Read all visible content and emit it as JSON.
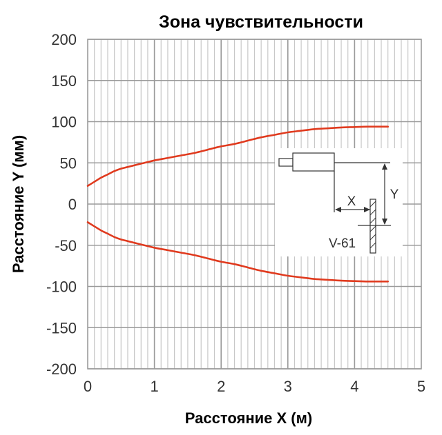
{
  "chart_data": {
    "type": "line",
    "title": "Зона чувствительности",
    "xlabel": "Расстояние X (м)",
    "ylabel": "Расстояние Y (мм)",
    "xlim": [
      0,
      5
    ],
    "ylim": [
      -200,
      200
    ],
    "x_ticks": [
      "0",
      "1",
      "2",
      "3",
      "4",
      "5"
    ],
    "y_ticks": [
      "200",
      "150",
      "100",
      "50",
      "0",
      "-50",
      "-100",
      "-150",
      "-200"
    ],
    "grid": true,
    "line_color": "#e03a1e",
    "series": [
      {
        "x": [
          0.0,
          0.1,
          0.2,
          0.3,
          0.4,
          0.5,
          0.6,
          0.8,
          1.0,
          1.2,
          1.4,
          1.6,
          1.8,
          2.0,
          2.2,
          2.4,
          2.6,
          2.8,
          3.0,
          3.2,
          3.4,
          3.6,
          3.8,
          4.0,
          4.2,
          4.5
        ],
        "y": [
          22,
          27,
          32,
          36,
          40,
          43,
          45,
          49,
          53,
          56,
          59,
          62,
          66,
          70,
          73,
          77,
          81,
          84,
          87,
          89,
          91,
          92,
          93,
          93.5,
          94,
          94
        ]
      },
      {
        "x": [
          0.0,
          0.1,
          0.2,
          0.3,
          0.4,
          0.5,
          0.6,
          0.8,
          1.0,
          1.2,
          1.4,
          1.6,
          1.8,
          2.0,
          2.2,
          2.4,
          2.6,
          2.8,
          3.0,
          3.2,
          3.4,
          3.6,
          3.8,
          4.0,
          4.2,
          4.5
        ],
        "y": [
          -22,
          -27,
          -32,
          -36,
          -40,
          -43,
          -45,
          -49,
          -53,
          -56,
          -59,
          -62,
          -66,
          -70,
          -73,
          -77,
          -81,
          -84,
          -87,
          -89,
          -91,
          -92,
          -93,
          -93.5,
          -94,
          -94
        ]
      }
    ],
    "inset": {
      "x_label": "X",
      "y_label": "Y",
      "model_label": "V-61"
    }
  }
}
